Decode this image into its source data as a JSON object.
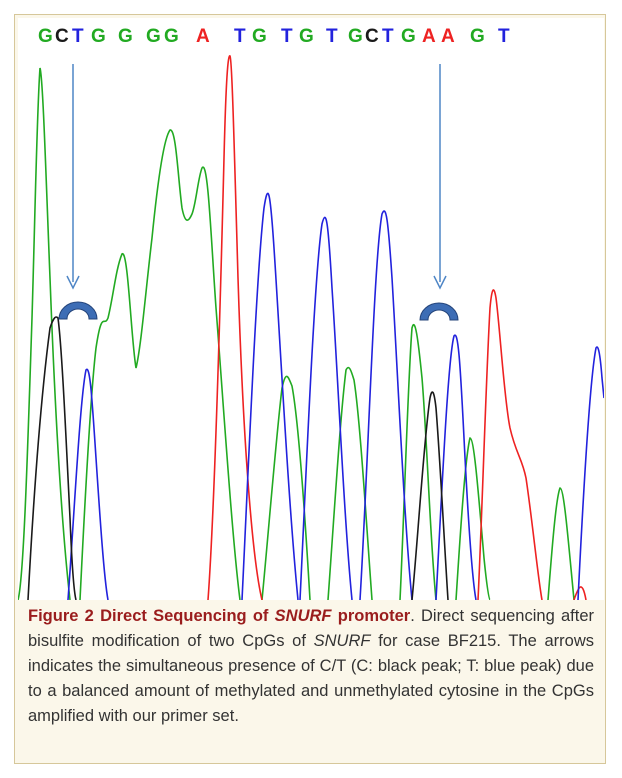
{
  "sequence": [
    {
      "base": "G",
      "color": "#22aa22"
    },
    {
      "base": "C",
      "color": "#1a1a1a"
    },
    {
      "base": "T",
      "color": "#2222dd"
    },
    {
      "base": "G",
      "color": "#22aa22"
    },
    {
      "base": "G",
      "color": "#22aa22"
    },
    {
      "base": "G",
      "color": "#22aa22"
    },
    {
      "base": "G",
      "color": "#22aa22"
    },
    {
      "base": "A",
      "color": "#ee2222"
    },
    {
      "base": "T",
      "color": "#2222dd"
    },
    {
      "base": "G",
      "color": "#22aa22"
    },
    {
      "base": "T",
      "color": "#2222dd"
    },
    {
      "base": "G",
      "color": "#22aa22"
    },
    {
      "base": "T",
      "color": "#2222dd"
    },
    {
      "base": "G",
      "color": "#22aa22"
    },
    {
      "base": "C",
      "color": "#1a1a1a"
    },
    {
      "base": "T",
      "color": "#2222dd"
    },
    {
      "base": "G",
      "color": "#22aa22"
    },
    {
      "base": "A",
      "color": "#ee2222"
    },
    {
      "base": "A",
      "color": "#ee2222"
    },
    {
      "base": "G",
      "color": "#22aa22"
    },
    {
      "base": "T",
      "color": "#2222dd"
    }
  ],
  "trace_colors": {
    "A": "#ee2222",
    "C": "#1a1a1a",
    "G": "#22aa22",
    "T": "#2222dd"
  },
  "marker_color": "#3d6db5",
  "arrow_color": "#4f86c6",
  "caption": {
    "label": "Figure 2",
    "title_prefix": "Direct Sequencing of ",
    "title_gene": "SNURF",
    "title_suffix": " promoter",
    "text_1": ". Direct sequencing after bisulfite modification of two CpGs of ",
    "gene": "SNURF",
    "text_2": " for case BF215. The arrows indicates the simultaneous presence of C/T (C: black peak; T: blue peak) due to a balanced amount of methylated and unmethylated cytosine in the CpGs amplified with our primer set."
  }
}
